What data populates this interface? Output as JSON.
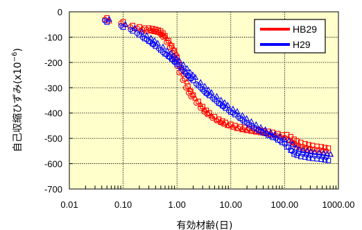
{
  "chart_data": {
    "type": "scatter",
    "title": "",
    "xlabel": "有効材齢(日)",
    "ylabel": "自己収縮ひずみ(x10",
    "ylabel_exponent": "−6",
    "ylabel_close": ")",
    "x_scale": "log",
    "xlim": [
      0.01,
      1000
    ],
    "ylim": [
      -700,
      0
    ],
    "x_tick_labels": [
      "0.01",
      "0.10",
      "1.00",
      "10.00",
      "100.00",
      "1000.00"
    ],
    "y_tick_labels": [
      "0",
      "-100",
      "-200",
      "-300",
      "-400",
      "-500",
      "-600",
      "-700"
    ],
    "grid": true,
    "plot_background": "#ffffcc",
    "legend_position": "top-right",
    "series": [
      {
        "name": "HB29",
        "color": "#ff0000",
        "markers": [
          "circle",
          "square",
          "triangle"
        ],
        "x": [
          0.05,
          0.1,
          0.15,
          0.2,
          0.25,
          0.3,
          0.35,
          0.4,
          0.45,
          0.5,
          0.55,
          0.6,
          0.7,
          0.8,
          0.9,
          1.0,
          1.1,
          1.2,
          1.4,
          1.6,
          1.8,
          2.0,
          2.5,
          3.0,
          3.5,
          4.0,
          5.0,
          6.0,
          7.0,
          8.0,
          10,
          12,
          15,
          18,
          22,
          27,
          33,
          40,
          50,
          60,
          75,
          90,
          110,
          130,
          150,
          170,
          200,
          240,
          280,
          330,
          400,
          480,
          560,
          650
        ],
        "y": [
          -30,
          -45,
          -60,
          -65,
          -70,
          -70,
          -72,
          -75,
          -78,
          -82,
          -90,
          -100,
          -120,
          -140,
          -160,
          -185,
          -215,
          -240,
          -270,
          -300,
          -320,
          -335,
          -360,
          -380,
          -395,
          -405,
          -420,
          -430,
          -437,
          -443,
          -450,
          -455,
          -460,
          -463,
          -466,
          -469,
          -472,
          -475,
          -478,
          -482,
          -487,
          -492,
          -497,
          -505,
          -515,
          -522,
          -528,
          -533,
          -537,
          -540,
          -543,
          -545,
          -548,
          -550
        ]
      },
      {
        "name": "H29",
        "color": "#0000ff",
        "markers": [
          "circle",
          "square",
          "triangle"
        ],
        "x": [
          0.05,
          0.1,
          0.15,
          0.2,
          0.25,
          0.3,
          0.35,
          0.4,
          0.5,
          0.6,
          0.7,
          0.8,
          0.9,
          1.0,
          1.2,
          1.4,
          1.6,
          1.8,
          2.0,
          2.5,
          3.0,
          3.5,
          4.0,
          5.0,
          6.0,
          7.0,
          8.0,
          10,
          12,
          15,
          18,
          22,
          27,
          33,
          40,
          50,
          60,
          75,
          90,
          110,
          130,
          150,
          170,
          200,
          240,
          280,
          330,
          400,
          480,
          560,
          650
        ],
        "y": [
          -35,
          -55,
          -70,
          -85,
          -100,
          -110,
          -120,
          -130,
          -145,
          -160,
          -170,
          -180,
          -190,
          -200,
          -215,
          -230,
          -245,
          -255,
          -265,
          -285,
          -300,
          -315,
          -325,
          -340,
          -355,
          -365,
          -375,
          -390,
          -400,
          -415,
          -428,
          -440,
          -452,
          -463,
          -472,
          -482,
          -490,
          -500,
          -510,
          -522,
          -535,
          -550,
          -555,
          -560,
          -562,
          -565,
          -567,
          -569,
          -571,
          -573,
          -575
        ]
      }
    ]
  }
}
